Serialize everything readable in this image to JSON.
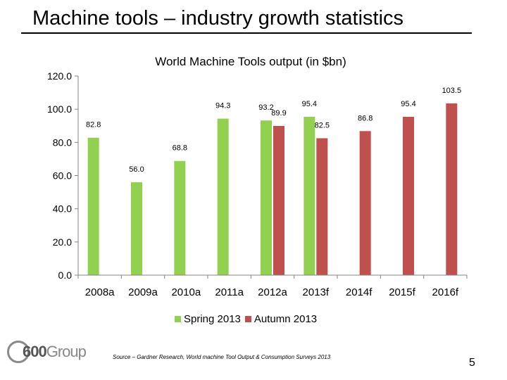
{
  "slide": {
    "title": "Machine tools – industry growth statistics",
    "source": "Source – Gardner Research, World machine Tool Output & Consumption Surveys 2013",
    "page_number": "5",
    "logo_text": "600",
    "logo_text2": "Group"
  },
  "colors": {
    "spring": "#92D050",
    "autumn": "#C0504D"
  },
  "chart_data": {
    "type": "bar",
    "title": "World Machine Tools output (in $bn)",
    "categories": [
      "2008a",
      "2009a",
      "2010a",
      "2011a",
      "2012a",
      "2013f",
      "2014f",
      "2015f",
      "2016f"
    ],
    "series": [
      {
        "name": "Spring 2013",
        "values": [
          82.8,
          56.0,
          68.8,
          94.3,
          93.2,
          95.4,
          null,
          null,
          null
        ]
      },
      {
        "name": "Autumn 2013",
        "values": [
          null,
          null,
          null,
          null,
          89.9,
          82.5,
          86.8,
          95.4,
          103.5
        ]
      }
    ],
    "ylim": [
      0,
      120
    ],
    "yticks": [
      "0.0",
      "20.0",
      "40.0",
      "60.0",
      "80.0",
      "100.0",
      "120.0"
    ],
    "xlabel": "",
    "ylabel": "",
    "legend": "bottom"
  }
}
